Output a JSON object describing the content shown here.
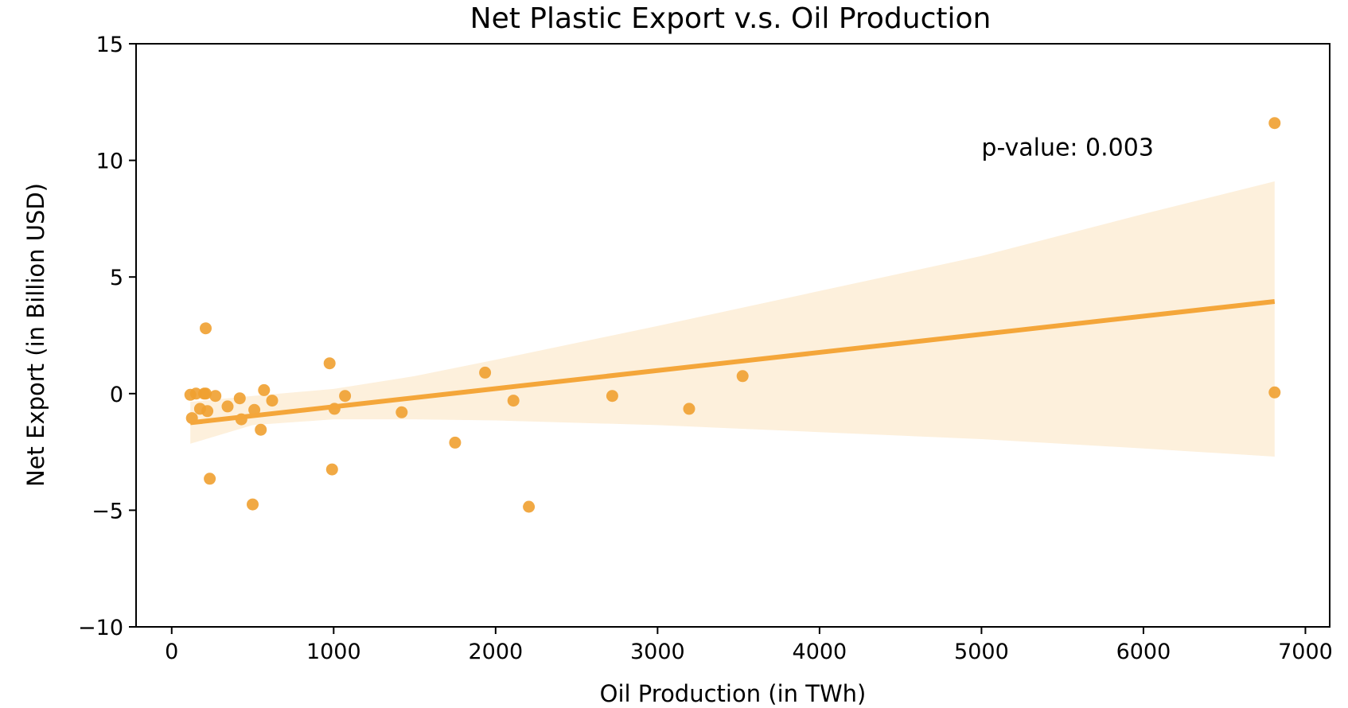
{
  "chart_data": {
    "type": "scatter",
    "title": "Net Plastic Export v.s. Oil Production",
    "xlabel": "Oil Production (in TWh)",
    "ylabel": "Net Export (in Billion USD)",
    "xlim": [
      -220,
      7150
    ],
    "ylim": [
      -10,
      15
    ],
    "xticks": [
      0,
      1000,
      2000,
      3000,
      4000,
      5000,
      6000,
      7000
    ],
    "xtick_labels": [
      "0",
      "1000",
      "2000",
      "3000",
      "4000",
      "5000",
      "6000",
      "7000"
    ],
    "yticks": [
      -10,
      -5,
      0,
      5,
      10,
      15
    ],
    "ytick_labels": [
      "−10",
      "−5",
      "0",
      "5",
      "10",
      "15"
    ],
    "grid": false,
    "colors": {
      "points": "#f0a030",
      "line": "#f4a63a",
      "band": "#fdf0dc"
    },
    "points": [
      {
        "x": 115,
        "y": -0.05
      },
      {
        "x": 125,
        "y": -1.05
      },
      {
        "x": 150,
        "y": 0.0
      },
      {
        "x": 175,
        "y": -0.65
      },
      {
        "x": 200,
        "y": 0.0
      },
      {
        "x": 210,
        "y": 0.0
      },
      {
        "x": 210,
        "y": 2.8
      },
      {
        "x": 220,
        "y": -0.75
      },
      {
        "x": 235,
        "y": -3.65
      },
      {
        "x": 270,
        "y": -0.1
      },
      {
        "x": 345,
        "y": -0.55
      },
      {
        "x": 420,
        "y": -0.2
      },
      {
        "x": 430,
        "y": -1.1
      },
      {
        "x": 500,
        "y": -4.75
      },
      {
        "x": 510,
        "y": -0.7
      },
      {
        "x": 550,
        "y": -1.55
      },
      {
        "x": 570,
        "y": 0.15
      },
      {
        "x": 620,
        "y": -0.3
      },
      {
        "x": 975,
        "y": 1.3
      },
      {
        "x": 990,
        "y": -3.25
      },
      {
        "x": 1005,
        "y": -0.65
      },
      {
        "x": 1070,
        "y": -0.1
      },
      {
        "x": 1420,
        "y": -0.8
      },
      {
        "x": 1750,
        "y": -2.1
      },
      {
        "x": 1935,
        "y": 0.9
      },
      {
        "x": 2110,
        "y": -0.3
      },
      {
        "x": 2205,
        "y": -4.85
      },
      {
        "x": 2720,
        "y": -0.1
      },
      {
        "x": 3195,
        "y": -0.65
      },
      {
        "x": 3525,
        "y": 0.75
      },
      {
        "x": 6810,
        "y": 11.6
      },
      {
        "x": 6810,
        "y": 0.05
      }
    ],
    "regression": {
      "x": [
        115,
        6810
      ],
      "y": [
        -1.25,
        3.95
      ]
    },
    "ci_band": {
      "x": [
        115,
        500,
        1000,
        1500,
        2000,
        3000,
        4000,
        5000,
        6000,
        6810
      ],
      "upper": [
        -0.35,
        -0.1,
        0.2,
        0.75,
        1.45,
        2.9,
        4.4,
        5.9,
        7.7,
        9.1
      ],
      "lower": [
        -2.15,
        -1.35,
        -1.1,
        -1.1,
        -1.15,
        -1.35,
        -1.65,
        -1.95,
        -2.35,
        -2.7
      ]
    },
    "annotations": [
      {
        "text": "p-value: 0.003",
        "x": 5000,
        "y": 10.2
      }
    ]
  }
}
